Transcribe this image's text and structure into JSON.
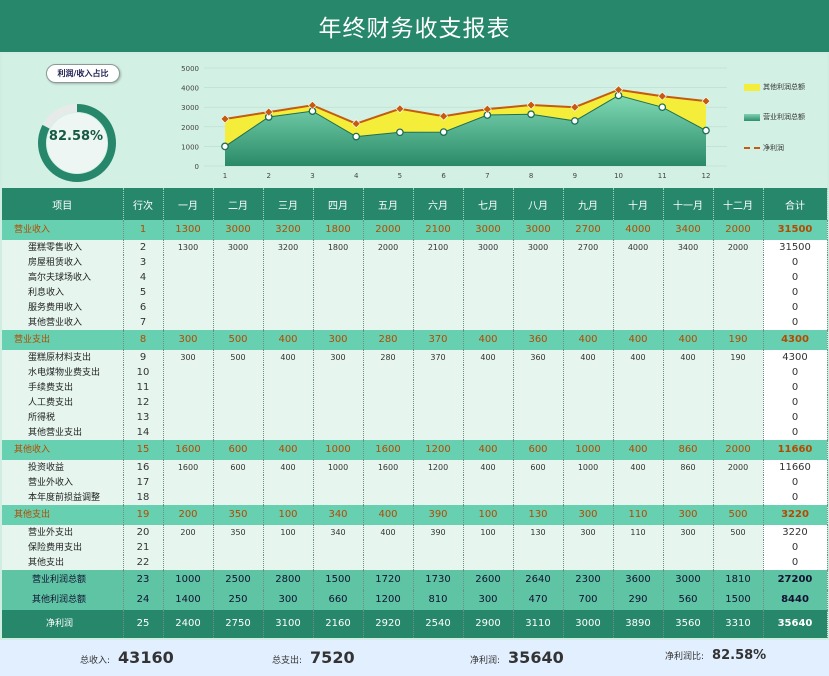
{
  "title": "年终财务收支报表",
  "ratio_button": "利润/收入占比",
  "ratio": {
    "value": 0.8258,
    "label": "82.58%"
  },
  "chart_data": {
    "type": "area",
    "x": [
      "1",
      "2",
      "3",
      "4",
      "5",
      "6",
      "7",
      "8",
      "9",
      "10",
      "11",
      "12"
    ],
    "yticks": [
      "0",
      "1000",
      "2000",
      "3000",
      "4000",
      "5000"
    ],
    "ylim": [
      0,
      5000
    ],
    "series": [
      {
        "name": "其他利润总额",
        "type": "area",
        "color": "#f4ee3a",
        "values": [
          2400,
          2750,
          3100,
          2160,
          2920,
          2540,
          2900,
          3110,
          3000,
          3890,
          3560,
          3310
        ]
      },
      {
        "name": "营业利润总额",
        "type": "area",
        "color": "#3aa57f",
        "values": [
          1000,
          2500,
          2800,
          1500,
          1720,
          1730,
          2600,
          2640,
          2300,
          3600,
          3000,
          1810
        ]
      },
      {
        "name": "净利润",
        "type": "line",
        "color": "#c55a11",
        "values": [
          2400,
          2750,
          3100,
          2160,
          2920,
          2540,
          2900,
          3110,
          3000,
          3890,
          3560,
          3310
        ]
      }
    ],
    "legend_position": "right",
    "grid": true
  },
  "table": {
    "headers": [
      "项目",
      "行次",
      "一月",
      "二月",
      "三月",
      "四月",
      "五月",
      "六月",
      "七月",
      "八月",
      "九月",
      "十月",
      "十一月",
      "十二月",
      "合计"
    ],
    "groups": [
      {
        "cat": {
          "name": "营业收入",
          "idx": "1",
          "vals": [
            "1300",
            "3000",
            "3200",
            "1800",
            "2000",
            "2100",
            "3000",
            "3000",
            "2700",
            "4000",
            "3400",
            "2000"
          ],
          "tot": "31500"
        },
        "subs": [
          {
            "name": "蛋糕零售收入",
            "idx": "2",
            "vals": [
              "1300",
              "3000",
              "3200",
              "1800",
              "2000",
              "2100",
              "3000",
              "3000",
              "2700",
              "4000",
              "3400",
              "2000"
            ],
            "tot": "31500"
          },
          {
            "name": "房屋租赁收入",
            "idx": "3",
            "vals": [
              "",
              "",
              "",
              "",
              "",
              "",
              "",
              "",
              "",
              "",
              "",
              ""
            ],
            "tot": "0"
          },
          {
            "name": "高尔夫球场收入",
            "idx": "4",
            "vals": [
              "",
              "",
              "",
              "",
              "",
              "",
              "",
              "",
              "",
              "",
              "",
              ""
            ],
            "tot": "0"
          },
          {
            "name": "利息收入",
            "idx": "5",
            "vals": [
              "",
              "",
              "",
              "",
              "",
              "",
              "",
              "",
              "",
              "",
              "",
              ""
            ],
            "tot": "0"
          },
          {
            "name": "服务费用收入",
            "idx": "6",
            "vals": [
              "",
              "",
              "",
              "",
              "",
              "",
              "",
              "",
              "",
              "",
              "",
              ""
            ],
            "tot": "0"
          },
          {
            "name": "其他营业收入",
            "idx": "7",
            "vals": [
              "",
              "",
              "",
              "",
              "",
              "",
              "",
              "",
              "",
              "",
              "",
              ""
            ],
            "tot": "0"
          }
        ]
      },
      {
        "cat": {
          "name": "营业支出",
          "idx": "8",
          "vals": [
            "300",
            "500",
            "400",
            "300",
            "280",
            "370",
            "400",
            "360",
            "400",
            "400",
            "400",
            "190"
          ],
          "tot": "4300"
        },
        "subs": [
          {
            "name": "蛋糕原材料支出",
            "idx": "9",
            "vals": [
              "300",
              "500",
              "400",
              "300",
              "280",
              "370",
              "400",
              "360",
              "400",
              "400",
              "400",
              "190"
            ],
            "tot": "4300"
          },
          {
            "name": "水电煤物业费支出",
            "idx": "10",
            "vals": [
              "",
              "",
              "",
              "",
              "",
              "",
              "",
              "",
              "",
              "",
              "",
              ""
            ],
            "tot": "0"
          },
          {
            "name": "手续费支出",
            "idx": "11",
            "vals": [
              "",
              "",
              "",
              "",
              "",
              "",
              "",
              "",
              "",
              "",
              "",
              ""
            ],
            "tot": "0"
          },
          {
            "name": "人工费支出",
            "idx": "12",
            "vals": [
              "",
              "",
              "",
              "",
              "",
              "",
              "",
              "",
              "",
              "",
              "",
              ""
            ],
            "tot": "0"
          },
          {
            "name": "所得税",
            "idx": "13",
            "vals": [
              "",
              "",
              "",
              "",
              "",
              "",
              "",
              "",
              "",
              "",
              "",
              ""
            ],
            "tot": "0"
          },
          {
            "name": "其他营业支出",
            "idx": "14",
            "vals": [
              "",
              "",
              "",
              "",
              "",
              "",
              "",
              "",
              "",
              "",
              "",
              ""
            ],
            "tot": "0"
          }
        ]
      },
      {
        "cat": {
          "name": "其他收入",
          "idx": "15",
          "vals": [
            "1600",
            "600",
            "400",
            "1000",
            "1600",
            "1200",
            "400",
            "600",
            "1000",
            "400",
            "860",
            "2000"
          ],
          "tot": "11660"
        },
        "subs": [
          {
            "name": "投资收益",
            "idx": "16",
            "vals": [
              "1600",
              "600",
              "400",
              "1000",
              "1600",
              "1200",
              "400",
              "600",
              "1000",
              "400",
              "860",
              "2000"
            ],
            "tot": "11660"
          },
          {
            "name": "营业外收入",
            "idx": "17",
            "vals": [
              "",
              "",
              "",
              "",
              "",
              "",
              "",
              "",
              "",
              "",
              "",
              ""
            ],
            "tot": "0"
          },
          {
            "name": "本年度前损益调整",
            "idx": "18",
            "vals": [
              "",
              "",
              "",
              "",
              "",
              "",
              "",
              "",
              "",
              "",
              "",
              ""
            ],
            "tot": "0"
          }
        ]
      },
      {
        "cat": {
          "name": "其他支出",
          "idx": "19",
          "vals": [
            "200",
            "350",
            "100",
            "340",
            "400",
            "390",
            "100",
            "130",
            "300",
            "110",
            "300",
            "500"
          ],
          "tot": "3220"
        },
        "subs": [
          {
            "name": "营业外支出",
            "idx": "20",
            "vals": [
              "200",
              "350",
              "100",
              "340",
              "400",
              "390",
              "100",
              "130",
              "300",
              "110",
              "300",
              "500"
            ],
            "tot": "3220"
          },
          {
            "name": "保险费用支出",
            "idx": "21",
            "vals": [
              "",
              "",
              "",
              "",
              "",
              "",
              "",
              "",
              "",
              "",
              "",
              ""
            ],
            "tot": "0"
          },
          {
            "name": "其他支出",
            "idx": "22",
            "vals": [
              "",
              "",
              "",
              "",
              "",
              "",
              "",
              "",
              "",
              "",
              "",
              ""
            ],
            "tot": "0"
          }
        ]
      }
    ],
    "sums": [
      {
        "name": "营业利润总额",
        "idx": "23",
        "vals": [
          "1000",
          "2500",
          "2800",
          "1500",
          "1720",
          "1730",
          "2600",
          "2640",
          "2300",
          "3600",
          "3000",
          "1810"
        ],
        "tot": "27200"
      },
      {
        "name": "其他利润总额",
        "idx": "24",
        "vals": [
          "1400",
          "250",
          "300",
          "660",
          "1200",
          "810",
          "300",
          "470",
          "700",
          "290",
          "560",
          "1500"
        ],
        "tot": "8440"
      }
    ],
    "net": {
      "name": "净利润",
      "idx": "25",
      "vals": [
        "2400",
        "2750",
        "3100",
        "2160",
        "2920",
        "2540",
        "2900",
        "3110",
        "3000",
        "3890",
        "3560",
        "3310"
      ],
      "tot": "35640"
    }
  },
  "footer": {
    "income_label": "总收入:",
    "income": "43160",
    "expense_label": "总支出:",
    "expense": "7520",
    "profit_label": "净利润:",
    "profit": "35640",
    "ratio_label": "净利润比:",
    "ratio": "82.58%"
  }
}
